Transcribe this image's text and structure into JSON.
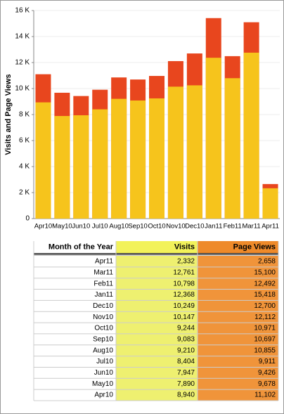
{
  "chart_data": {
    "type": "bar",
    "y_label": "Visits and Page Views",
    "categories": [
      "Apr10",
      "May10",
      "Jun10",
      "Jul10",
      "Aug10",
      "Sep10",
      "Oct10",
      "Nov10",
      "Dec10",
      "Jan11",
      "Feb11",
      "Mar11",
      "Apr11"
    ],
    "series": [
      {
        "name": "Page Views",
        "color": "#e8461e",
        "values": [
          11102,
          9678,
          9426,
          9911,
          10855,
          10697,
          10971,
          12112,
          12700,
          15418,
          12492,
          15100,
          2658
        ],
        "value_labels": [
          "11,102",
          "9,678",
          "9,426",
          "9,911",
          "10,855",
          "10,697",
          "10,971",
          "12,112",
          "12,700",
          "15,418",
          "12,492",
          "15,100",
          "2,658"
        ]
      },
      {
        "name": "Visits",
        "color": "#f6c41c",
        "values": [
          8940,
          7890,
          7947,
          8404,
          9210,
          9083,
          9244,
          10147,
          10249,
          12368,
          10798,
          12761,
          2332
        ],
        "value_labels": [
          "8,940",
          "7,890",
          "7,947",
          "8,404",
          "9,210",
          "9,083",
          "9,244",
          "10,147",
          "10,249",
          "12,368",
          "10,798",
          "12,761",
          "2,332"
        ]
      }
    ],
    "ylim": [
      0,
      16000
    ],
    "yticks": [
      0,
      {
        "value": 2000,
        "label": "2 K"
      },
      {
        "value": 4000,
        "label": "4 K"
      },
      {
        "value": 6000,
        "label": "6 K"
      },
      {
        "value": 8000,
        "label": "8 K"
      },
      {
        "value": 10000,
        "label": "10 K"
      },
      {
        "value": 12000,
        "label": "12 K"
      },
      {
        "value": 14000,
        "label": "14 K"
      },
      {
        "value": 16000,
        "label": "16 K"
      }
    ],
    "grid": true
  },
  "table": {
    "header": "Month of the Year"
  }
}
